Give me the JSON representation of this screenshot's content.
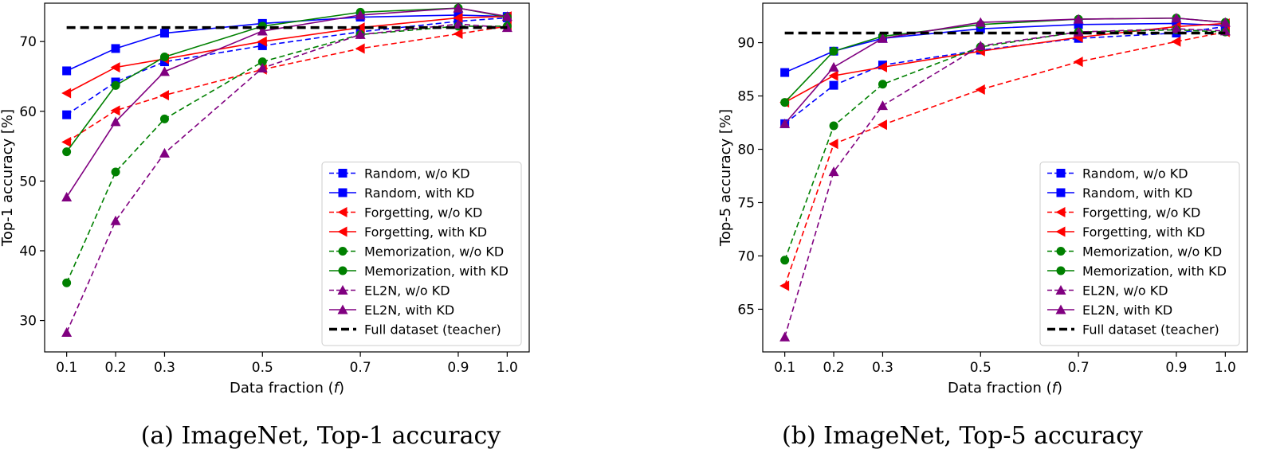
{
  "chart_data": [
    {
      "type": "line",
      "caption": "(a) ImageNet, Top-1 accuracy",
      "xlabel": "Data fraction (f)",
      "ylabel": "Top-1 accuracy [%]",
      "x": [
        0.1,
        0.2,
        0.3,
        0.5,
        0.7,
        0.9,
        1.0
      ],
      "x_tick_labels": [
        "0.1",
        "0.2",
        "0.3",
        "0.5",
        "0.7",
        "0.9",
        "1.0"
      ],
      "xlim": [
        0.055,
        1.045
      ],
      "ylim": [
        25.5,
        75.5
      ],
      "y_ticks": [
        30,
        40,
        50,
        60,
        70
      ],
      "y_tick_labels": [
        "30",
        "40",
        "50",
        "60",
        "70"
      ],
      "grid": false,
      "legend_position": "lower-right",
      "series": [
        {
          "name": "Random, w/o KD",
          "color": "#0000ff",
          "style": "dashed",
          "marker": "square",
          "values": [
            59.5,
            64.2,
            67.1,
            69.4,
            71.4,
            72.9,
            73.4
          ]
        },
        {
          "name": "Random, with KD",
          "color": "#0000ff",
          "style": "solid",
          "marker": "square",
          "values": [
            65.8,
            69.0,
            71.2,
            72.6,
            73.5,
            73.8,
            73.6
          ]
        },
        {
          "name": "Forgetting, w/o KD",
          "color": "#ff0000",
          "style": "dashed",
          "marker": "triangle-left",
          "values": [
            55.6,
            60.1,
            62.3,
            66.0,
            69.0,
            71.1,
            72.2
          ]
        },
        {
          "name": "Forgetting, with KD",
          "color": "#ff0000",
          "style": "solid",
          "marker": "triangle-left",
          "values": [
            62.6,
            66.3,
            67.5,
            70.0,
            72.0,
            73.4,
            73.6
          ]
        },
        {
          "name": "Memorization, w/o KD",
          "color": "#008000",
          "style": "dashed",
          "marker": "circle",
          "values": [
            35.4,
            51.3,
            58.9,
            67.1,
            71.0,
            72.2,
            72.2
          ]
        },
        {
          "name": "Memorization, with KD",
          "color": "#008000",
          "style": "solid",
          "marker": "circle",
          "values": [
            54.2,
            63.7,
            67.8,
            72.2,
            74.2,
            74.8,
            73.5
          ]
        },
        {
          "name": "EL2N, w/o KD",
          "color": "#800080",
          "style": "dashed",
          "marker": "triangle-up",
          "values": [
            28.3,
            44.3,
            54.0,
            66.2,
            71.0,
            72.5,
            72.0
          ]
        },
        {
          "name": "EL2N, with KD",
          "color": "#800080",
          "style": "solid",
          "marker": "triangle-up",
          "values": [
            47.7,
            58.5,
            65.7,
            71.5,
            73.8,
            74.8,
            73.6
          ]
        },
        {
          "name": "Full dataset (teacher)",
          "color": "#000000",
          "style": "thick-dashed",
          "marker": "none",
          "values": [
            72.0,
            72.0,
            72.0,
            72.0,
            72.0,
            72.0,
            72.0
          ]
        }
      ]
    },
    {
      "type": "line",
      "caption": "(b) ImageNet, Top-5 accuracy",
      "xlabel": "Data fraction (f)",
      "ylabel": "Top-5 accuracy [%]",
      "x": [
        0.1,
        0.2,
        0.3,
        0.5,
        0.7,
        0.9,
        1.0
      ],
      "x_tick_labels": [
        "0.1",
        "0.2",
        "0.3",
        "0.5",
        "0.7",
        "0.9",
        "1.0"
      ],
      "xlim": [
        0.055,
        1.045
      ],
      "ylim": [
        61.0,
        93.7
      ],
      "y_ticks": [
        65,
        70,
        75,
        80,
        85,
        90
      ],
      "y_tick_labels": [
        "65",
        "70",
        "75",
        "80",
        "85",
        "90"
      ],
      "grid": false,
      "legend_position": "lower-right",
      "series": [
        {
          "name": "Random, w/o KD",
          "color": "#0000ff",
          "style": "dashed",
          "marker": "square",
          "values": [
            82.4,
            86.0,
            87.9,
            89.3,
            90.4,
            90.9,
            91.5
          ]
        },
        {
          "name": "Random, with KD",
          "color": "#0000ff",
          "style": "solid",
          "marker": "square",
          "values": [
            87.2,
            89.2,
            90.4,
            91.3,
            91.7,
            91.8,
            91.6
          ]
        },
        {
          "name": "Forgetting, w/o KD",
          "color": "#ff0000",
          "style": "dashed",
          "marker": "triangle-left",
          "values": [
            67.2,
            80.5,
            82.3,
            85.6,
            88.2,
            90.1,
            91.0
          ]
        },
        {
          "name": "Forgetting, with KD",
          "color": "#ff0000",
          "style": "solid",
          "marker": "triangle-left",
          "values": [
            84.4,
            86.9,
            87.7,
            89.2,
            90.5,
            91.5,
            91.8
          ]
        },
        {
          "name": "Memorization, w/o KD",
          "color": "#008000",
          "style": "dashed",
          "marker": "circle",
          "values": [
            69.6,
            82.2,
            86.1,
            89.6,
            91.0,
            91.2,
            91.0
          ]
        },
        {
          "name": "Memorization, with KD",
          "color": "#008000",
          "style": "solid",
          "marker": "circle",
          "values": [
            84.4,
            89.2,
            90.6,
            91.7,
            92.2,
            92.3,
            91.9
          ]
        },
        {
          "name": "EL2N, w/o KD",
          "color": "#800080",
          "style": "dashed",
          "marker": "triangle-up",
          "values": [
            62.4,
            77.9,
            84.1,
            89.7,
            91.0,
            91.3,
            91.1
          ]
        },
        {
          "name": "EL2N, with KD",
          "color": "#800080",
          "style": "solid",
          "marker": "triangle-up",
          "values": [
            82.4,
            87.7,
            90.4,
            91.9,
            92.2,
            92.3,
            91.9
          ]
        },
        {
          "name": "Full dataset (teacher)",
          "color": "#000000",
          "style": "thick-dashed",
          "marker": "none",
          "values": [
            90.9,
            90.9,
            90.9,
            90.9,
            90.9,
            90.9,
            90.9
          ]
        }
      ]
    }
  ]
}
